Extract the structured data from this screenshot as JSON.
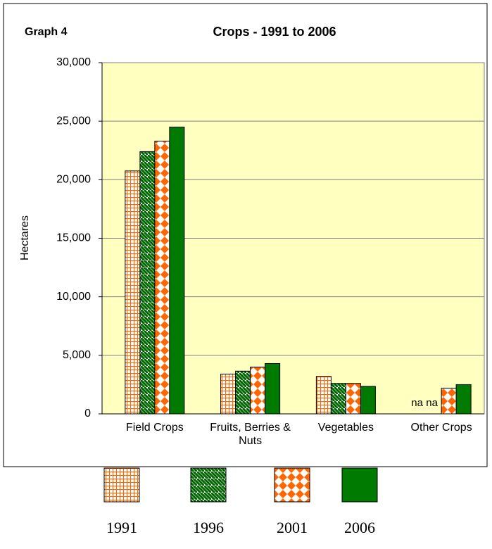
{
  "chart_data": {
    "type": "bar",
    "title": "Crops - 1991 to 2006",
    "label": "Graph 4",
    "y_label": "Hectares",
    "categories": [
      "Field Crops",
      "Fruits, Berries & Nuts",
      "Vegetables",
      "Other Crops"
    ],
    "series": [
      {
        "name": "1991",
        "color": "#ff6600",
        "pattern": "grid",
        "values": [
          20750,
          3400,
          3200,
          null
        ],
        "value_labels": [
          null,
          null,
          null,
          "na"
        ]
      },
      {
        "name": "1996",
        "color": "#006600",
        "pattern": "diagonal",
        "values": [
          22400,
          3650,
          2600,
          null
        ],
        "value_labels": [
          null,
          null,
          null,
          "na"
        ]
      },
      {
        "name": "2001",
        "color": "#ff6600",
        "pattern": "diamond",
        "values": [
          23300,
          4000,
          2600,
          2200
        ]
      },
      {
        "name": "2006",
        "color": "#007a00",
        "pattern": "solid",
        "values": [
          24500,
          4300,
          2350,
          2500
        ]
      }
    ],
    "ylim": [
      0,
      30000
    ],
    "yticks": [
      0,
      {
        "value": 5000,
        "label": "5,000"
      },
      {
        "value": 10000,
        "label": "10,000"
      },
      {
        "value": 15000,
        "label": "15,000"
      },
      {
        "value": 20000,
        "label": "20,000"
      },
      {
        "value": 25000,
        "label": "25,000"
      },
      {
        "value": 30000,
        "label": "30,000"
      }
    ],
    "grid": true,
    "background": "#ffffc0"
  }
}
